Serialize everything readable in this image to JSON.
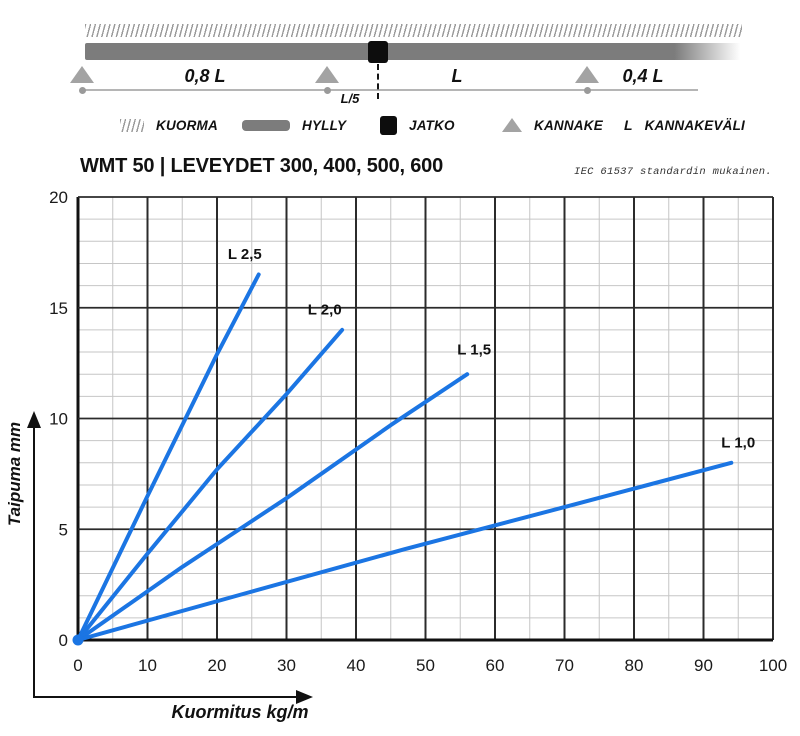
{
  "diagram": {
    "span_labels": [
      "0,8 L",
      "L",
      "0,4 L"
    ],
    "joint_offset_label": "L/5",
    "legend": [
      {
        "icon": "load-hatch-icon",
        "label": "KUORMA"
      },
      {
        "icon": "shelf-bar-icon",
        "label": "HYLLY"
      },
      {
        "icon": "joint-square-icon",
        "label": "JATKO"
      },
      {
        "icon": "support-triangle-icon",
        "label": "KANNAKE"
      },
      {
        "icon": "span-symbol",
        "symbol": "L",
        "label": "KANNAKEVÄLI"
      }
    ],
    "colors": {
      "shelf_gray": "#7c7c7c",
      "support_gray": "#a3a3a3",
      "joint_black": "#0d0d0d"
    }
  },
  "header": {
    "title": "WMT 50 | LEVEYDET 300, 400, 500, 600",
    "note": "IEC 61537 standardin mukainen."
  },
  "chart_data": {
    "type": "line",
    "title": "WMT 50 | LEVEYDET 300, 400, 500, 600",
    "xlabel": "Kuormitus kg/m",
    "ylabel": "Taipuma mm",
    "xlim": [
      0,
      100
    ],
    "ylim": [
      0,
      20
    ],
    "x_ticks": [
      0,
      10,
      20,
      30,
      40,
      50,
      60,
      70,
      80,
      90,
      100
    ],
    "y_ticks": [
      0,
      5,
      10,
      15,
      20
    ],
    "x_minor_step": 5,
    "y_minor_step": 1,
    "grid": true,
    "legend_position": "inline-labels",
    "line_color": "#1b75e3",
    "series": [
      {
        "name": "L 2,5",
        "points": [
          [
            0,
            0
          ],
          [
            10,
            6.5
          ],
          [
            20,
            12.9
          ],
          [
            26,
            16.5
          ]
        ],
        "label_at": [
          24,
          17.2
        ]
      },
      {
        "name": "L 2,0",
        "points": [
          [
            0,
            0
          ],
          [
            10,
            3.9
          ],
          [
            20,
            7.7
          ],
          [
            30,
            11.1
          ],
          [
            38,
            14.0
          ]
        ],
        "label_at": [
          35.5,
          14.7
        ]
      },
      {
        "name": "L 1,5",
        "points": [
          [
            0,
            0
          ],
          [
            15,
            3.3
          ],
          [
            30,
            6.4
          ],
          [
            45,
            9.7
          ],
          [
            56,
            12.0
          ]
        ],
        "label_at": [
          57,
          12.9
        ]
      },
      {
        "name": "L 1,0",
        "points": [
          [
            0,
            0
          ],
          [
            24,
            2.1
          ],
          [
            47,
            4.1
          ],
          [
            70,
            6.0
          ],
          [
            94,
            8.0
          ]
        ],
        "label_at": [
          95,
          8.7
        ]
      }
    ]
  }
}
